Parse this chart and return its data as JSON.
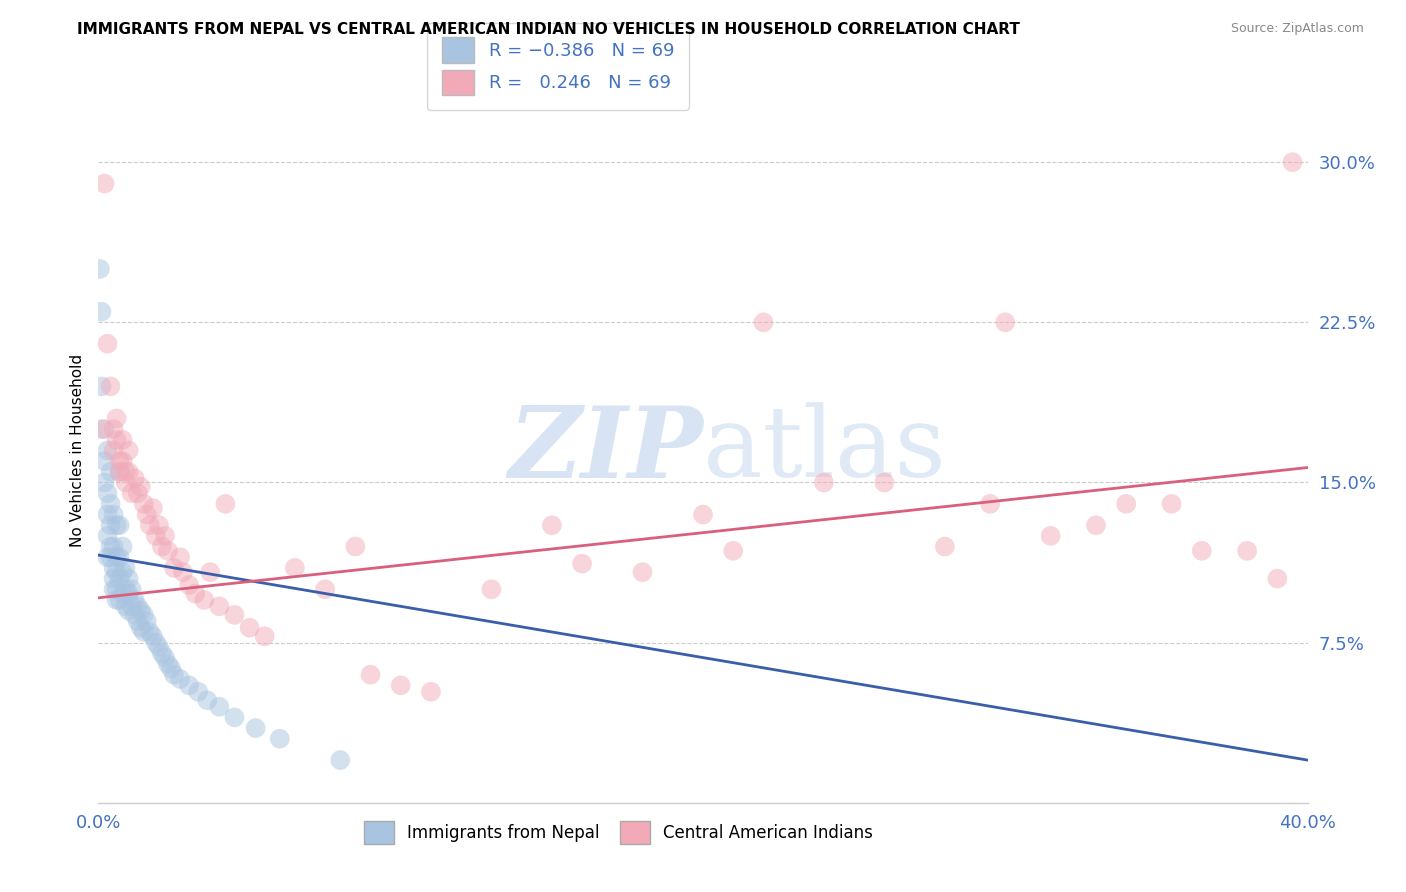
{
  "title": "IMMIGRANTS FROM NEPAL VS CENTRAL AMERICAN INDIAN NO VEHICLES IN HOUSEHOLD CORRELATION CHART",
  "source": "Source: ZipAtlas.com",
  "ylabel": "No Vehicles in Household",
  "ytick_vals": [
    0.075,
    0.15,
    0.225,
    0.3
  ],
  "xlim": [
    0.0,
    0.4
  ],
  "ylim": [
    0.0,
    0.33
  ],
  "color_blue": "#a8c4e0",
  "color_pink": "#f2aab8",
  "line_blue": "#3a5fa8",
  "line_pink": "#d95f7e",
  "axis_label_color": "#4472c4",
  "watermark_zip": "ZIP",
  "watermark_atlas": "atlas",
  "bg_color": "#ffffff",
  "grid_color": "#cccccc",
  "scatter_size": 200,
  "scatter_alpha": 0.5,
  "nepal_scatter": [
    [
      0.0005,
      0.25
    ],
    [
      0.001,
      0.23
    ],
    [
      0.001,
      0.195
    ],
    [
      0.002,
      0.175
    ],
    [
      0.002,
      0.16
    ],
    [
      0.002,
      0.15
    ],
    [
      0.003,
      0.165
    ],
    [
      0.003,
      0.145
    ],
    [
      0.003,
      0.135
    ],
    [
      0.003,
      0.125
    ],
    [
      0.003,
      0.115
    ],
    [
      0.004,
      0.155
    ],
    [
      0.004,
      0.14
    ],
    [
      0.004,
      0.13
    ],
    [
      0.004,
      0.12
    ],
    [
      0.004,
      0.115
    ],
    [
      0.005,
      0.135
    ],
    [
      0.005,
      0.12
    ],
    [
      0.005,
      0.11
    ],
    [
      0.005,
      0.105
    ],
    [
      0.005,
      0.1
    ],
    [
      0.006,
      0.13
    ],
    [
      0.006,
      0.115
    ],
    [
      0.006,
      0.108
    ],
    [
      0.006,
      0.1
    ],
    [
      0.006,
      0.095
    ],
    [
      0.007,
      0.155
    ],
    [
      0.007,
      0.13
    ],
    [
      0.007,
      0.115
    ],
    [
      0.007,
      0.105
    ],
    [
      0.007,
      0.095
    ],
    [
      0.008,
      0.12
    ],
    [
      0.008,
      0.108
    ],
    [
      0.008,
      0.098
    ],
    [
      0.009,
      0.11
    ],
    [
      0.009,
      0.1
    ],
    [
      0.009,
      0.092
    ],
    [
      0.01,
      0.105
    ],
    [
      0.01,
      0.098
    ],
    [
      0.01,
      0.09
    ],
    [
      0.011,
      0.1
    ],
    [
      0.011,
      0.092
    ],
    [
      0.012,
      0.095
    ],
    [
      0.012,
      0.088
    ],
    [
      0.013,
      0.092
    ],
    [
      0.013,
      0.085
    ],
    [
      0.014,
      0.09
    ],
    [
      0.014,
      0.082
    ],
    [
      0.015,
      0.088
    ],
    [
      0.015,
      0.08
    ],
    [
      0.016,
      0.085
    ],
    [
      0.017,
      0.08
    ],
    [
      0.018,
      0.078
    ],
    [
      0.019,
      0.075
    ],
    [
      0.02,
      0.073
    ],
    [
      0.021,
      0.07
    ],
    [
      0.022,
      0.068
    ],
    [
      0.023,
      0.065
    ],
    [
      0.024,
      0.063
    ],
    [
      0.025,
      0.06
    ],
    [
      0.027,
      0.058
    ],
    [
      0.03,
      0.055
    ],
    [
      0.033,
      0.052
    ],
    [
      0.036,
      0.048
    ],
    [
      0.04,
      0.045
    ],
    [
      0.045,
      0.04
    ],
    [
      0.052,
      0.035
    ],
    [
      0.06,
      0.03
    ],
    [
      0.08,
      0.02
    ]
  ],
  "central_scatter": [
    [
      0.001,
      0.175
    ],
    [
      0.002,
      0.29
    ],
    [
      0.003,
      0.215
    ],
    [
      0.004,
      0.195
    ],
    [
      0.005,
      0.175
    ],
    [
      0.005,
      0.165
    ],
    [
      0.006,
      0.18
    ],
    [
      0.006,
      0.17
    ],
    [
      0.007,
      0.16
    ],
    [
      0.007,
      0.155
    ],
    [
      0.008,
      0.17
    ],
    [
      0.008,
      0.16
    ],
    [
      0.009,
      0.155
    ],
    [
      0.009,
      0.15
    ],
    [
      0.01,
      0.165
    ],
    [
      0.01,
      0.155
    ],
    [
      0.011,
      0.145
    ],
    [
      0.012,
      0.152
    ],
    [
      0.013,
      0.145
    ],
    [
      0.014,
      0.148
    ],
    [
      0.015,
      0.14
    ],
    [
      0.016,
      0.135
    ],
    [
      0.017,
      0.13
    ],
    [
      0.018,
      0.138
    ],
    [
      0.019,
      0.125
    ],
    [
      0.02,
      0.13
    ],
    [
      0.021,
      0.12
    ],
    [
      0.022,
      0.125
    ],
    [
      0.023,
      0.118
    ],
    [
      0.025,
      0.11
    ],
    [
      0.027,
      0.115
    ],
    [
      0.028,
      0.108
    ],
    [
      0.03,
      0.102
    ],
    [
      0.032,
      0.098
    ],
    [
      0.035,
      0.095
    ],
    [
      0.037,
      0.108
    ],
    [
      0.04,
      0.092
    ],
    [
      0.042,
      0.14
    ],
    [
      0.045,
      0.088
    ],
    [
      0.05,
      0.082
    ],
    [
      0.055,
      0.078
    ],
    [
      0.065,
      0.11
    ],
    [
      0.075,
      0.1
    ],
    [
      0.085,
      0.12
    ],
    [
      0.09,
      0.06
    ],
    [
      0.1,
      0.055
    ],
    [
      0.11,
      0.052
    ],
    [
      0.13,
      0.1
    ],
    [
      0.15,
      0.13
    ],
    [
      0.16,
      0.112
    ],
    [
      0.18,
      0.108
    ],
    [
      0.2,
      0.135
    ],
    [
      0.21,
      0.118
    ],
    [
      0.22,
      0.225
    ],
    [
      0.24,
      0.15
    ],
    [
      0.26,
      0.15
    ],
    [
      0.28,
      0.12
    ],
    [
      0.295,
      0.14
    ],
    [
      0.3,
      0.225
    ],
    [
      0.315,
      0.125
    ],
    [
      0.33,
      0.13
    ],
    [
      0.34,
      0.14
    ],
    [
      0.355,
      0.14
    ],
    [
      0.365,
      0.118
    ],
    [
      0.38,
      0.118
    ],
    [
      0.39,
      0.105
    ],
    [
      0.395,
      0.3
    ]
  ],
  "nepal_line": [
    [
      0.0,
      0.116
    ],
    [
      0.4,
      0.02
    ]
  ],
  "central_line": [
    [
      0.0,
      0.096
    ],
    [
      0.4,
      0.157
    ]
  ]
}
